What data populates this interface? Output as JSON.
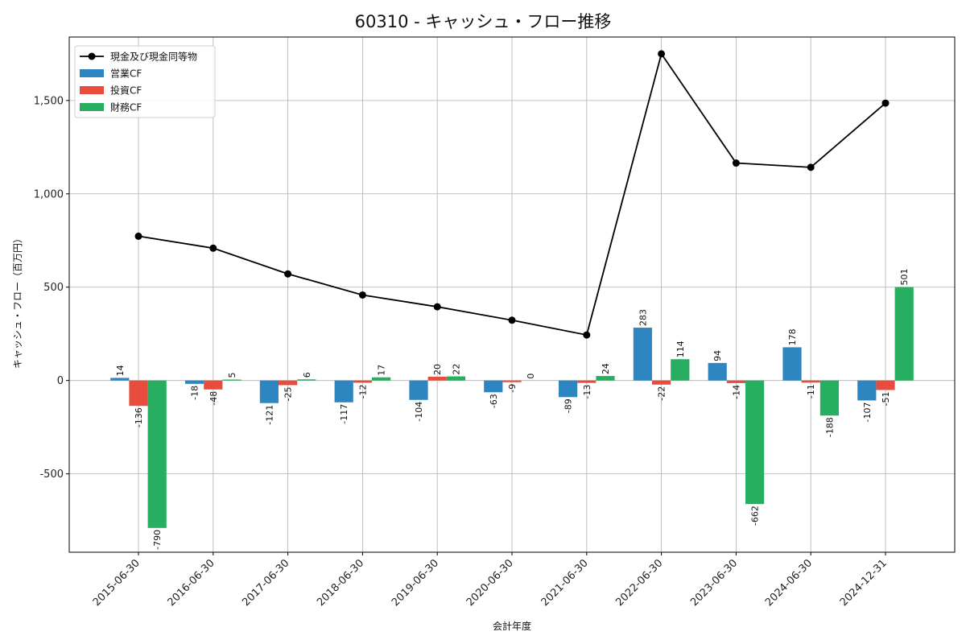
{
  "chart_data": {
    "type": "bar",
    "title": "60310 - キャッシュ・フロー推移",
    "xlabel": "会計年度",
    "ylabel": "キャッシュ・フロー（百万円）",
    "categories": [
      "2015-06-30",
      "2016-06-30",
      "2017-06-30",
      "2018-06-30",
      "2019-06-30",
      "2020-06-30",
      "2021-06-30",
      "2022-06-30",
      "2023-06-30",
      "2024-06-30",
      "2024-12-31"
    ],
    "ylim": [
      -920,
      1840
    ],
    "yticks": [
      -500,
      0,
      500,
      1000,
      1500
    ],
    "ytick_labels": [
      "-500",
      "0",
      "500",
      "1,000",
      "1,500"
    ],
    "grid": true,
    "legend_position": "top-left",
    "series": [
      {
        "name": "営業CF",
        "type": "bar",
        "color": "#2e86c1",
        "values": [
          14,
          -18,
          -121,
          -117,
          -104,
          -63,
          -89,
          283,
          94,
          178,
          -107
        ]
      },
      {
        "name": "投資CF",
        "type": "bar",
        "color": "#e74c3c",
        "values": [
          -136,
          -48,
          -25,
          -12,
          20,
          -9,
          -13,
          -22,
          -14,
          -11,
          -51
        ]
      },
      {
        "name": "財務CF",
        "type": "bar",
        "color": "#27ae60",
        "values": [
          -790,
          5,
          6,
          17,
          22,
          0,
          24,
          114,
          -662,
          -188,
          501
        ]
      },
      {
        "name": "現金及び現金同等物",
        "type": "line",
        "color": "#000000",
        "values": [
          773,
          709,
          571,
          458,
          395,
          323,
          244,
          1750,
          1165,
          1142,
          1486
        ]
      }
    ]
  }
}
